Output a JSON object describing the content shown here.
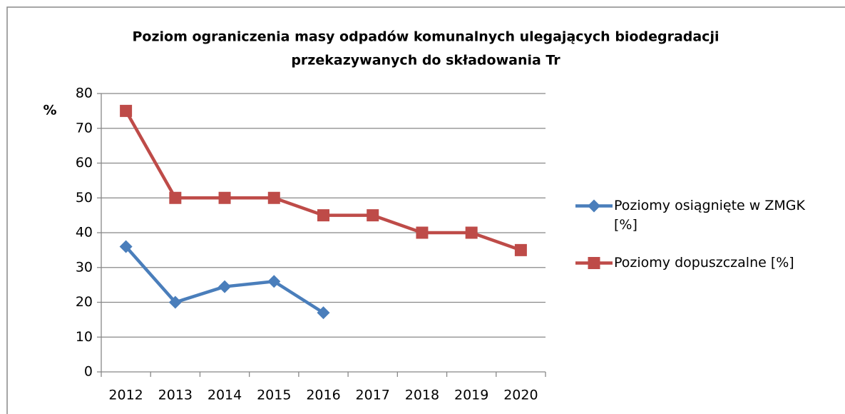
{
  "chart_data": {
    "type": "line",
    "title_lines": [
      "Poziom ograniczenia masy odpadów komunalnych ulegających biodegradacji",
      "przekazywanych do składowania Tr"
    ],
    "y_label": "%",
    "categories": [
      "2012",
      "2013",
      "2014",
      "2015",
      "2016",
      "2017",
      "2018",
      "2019",
      "2020"
    ],
    "series": [
      {
        "name": "Poziomy osiągnięte w ZMGK [%]",
        "color": "#4a7ebb",
        "marker": "diamond",
        "values": [
          36,
          20,
          24.5,
          26,
          17,
          null,
          null,
          null,
          null
        ]
      },
      {
        "name": "Poziomy dopuszczalne [%]",
        "color": "#be4b48",
        "marker": "square",
        "values": [
          75,
          50,
          50,
          50,
          45,
          45,
          40,
          40,
          35
        ]
      }
    ],
    "ylim": [
      0,
      80
    ],
    "yticks": [
      0,
      10,
      20,
      30,
      40,
      50,
      60,
      70,
      80
    ],
    "grid": true,
    "legend": "right"
  }
}
